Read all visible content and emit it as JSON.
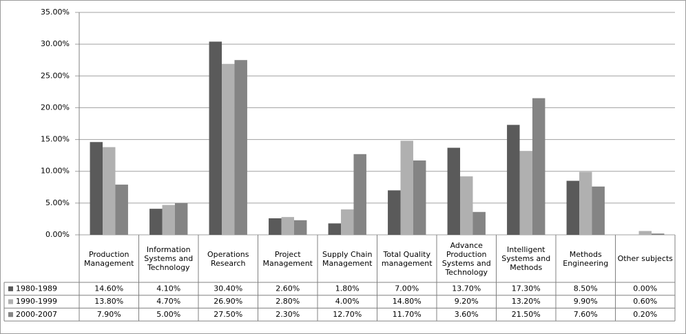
{
  "chart_data": {
    "type": "bar",
    "categories": [
      "Production Management",
      "Information Systems and Technology",
      "Operations Research",
      "Project Management",
      "Supply Chain Management",
      "Total Quality management",
      "Advance Production Systems and Technology",
      "Intelligent Systems and Methods",
      "Methods Engineering",
      "Other subjects"
    ],
    "series": [
      {
        "name": "1980-1989",
        "color": "#5a5a5a",
        "values": [
          14.6,
          4.1,
          30.4,
          2.6,
          1.8,
          7.0,
          13.7,
          17.3,
          8.5,
          0.0
        ],
        "value_labels": [
          "14.60%",
          "4.10%",
          "30.40%",
          "2.60%",
          "1.80%",
          "7.00%",
          "13.70%",
          "17.30%",
          "8.50%",
          "0.00%"
        ]
      },
      {
        "name": "1990-1999",
        "color": "#b0b0b0",
        "values": [
          13.8,
          4.7,
          26.9,
          2.8,
          4.0,
          14.8,
          9.2,
          13.2,
          9.9,
          0.6
        ],
        "value_labels": [
          "13.80%",
          "4.70%",
          "26.90%",
          "2.80%",
          "4.00%",
          "14.80%",
          "9.20%",
          "13.20%",
          "9.90%",
          "0.60%"
        ]
      },
      {
        "name": "2000-2007",
        "color": "#848484",
        "values": [
          7.9,
          5.0,
          27.5,
          2.3,
          12.7,
          11.7,
          3.6,
          21.5,
          7.6,
          0.2
        ],
        "value_labels": [
          "7.90%",
          "5.00%",
          "27.50%",
          "2.30%",
          "12.70%",
          "11.70%",
          "3.60%",
          "21.50%",
          "7.60%",
          "0.20%"
        ]
      }
    ],
    "ylim": [
      0,
      35
    ],
    "yticks": [
      {
        "value": 0,
        "label": "0.00%"
      },
      {
        "value": 5,
        "label": "5.00%"
      },
      {
        "value": 10,
        "label": "10.00%"
      },
      {
        "value": 15,
        "label": "15.00%"
      },
      {
        "value": 20,
        "label": "20.00%"
      },
      {
        "value": 25,
        "label": "25.00%"
      },
      {
        "value": 30,
        "label": "30.00%"
      },
      {
        "value": 35,
        "label": "35.00%"
      }
    ],
    "grid": true
  }
}
